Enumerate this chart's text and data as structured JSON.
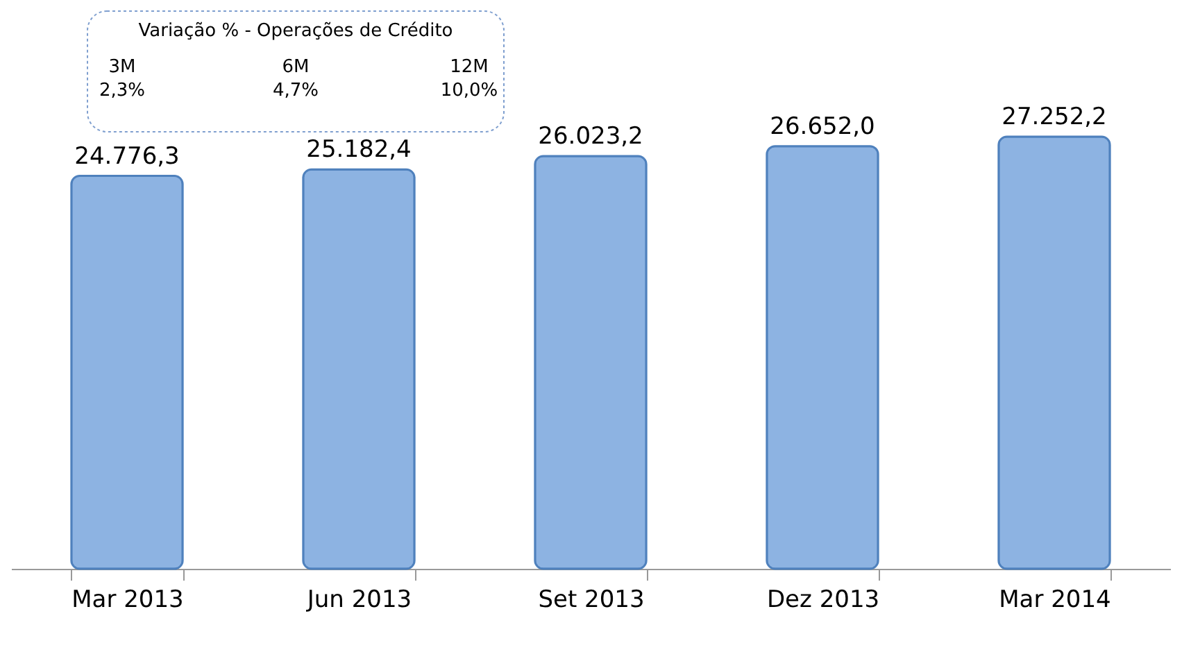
{
  "chart_data": {
    "type": "bar",
    "categories": [
      "Mar 2013",
      "Jun 2013",
      "Set 2013",
      "Dez 2013",
      "Mar 2014"
    ],
    "values": [
      24776.3,
      25182.4,
      26023.2,
      26652.0,
      27252.2
    ],
    "value_labels": [
      "24.776,3",
      "25.182,4",
      "26.023,2",
      "26.652,0",
      "27.252,2"
    ],
    "color": "#8db3e2",
    "tick_labels": "x",
    "grid": false,
    "annotations": [
      "Variação % - Operações de Crédito",
      "3M",
      "2,3%",
      "6M",
      "4,7%",
      "12M",
      "10,0%"
    ]
  }
}
